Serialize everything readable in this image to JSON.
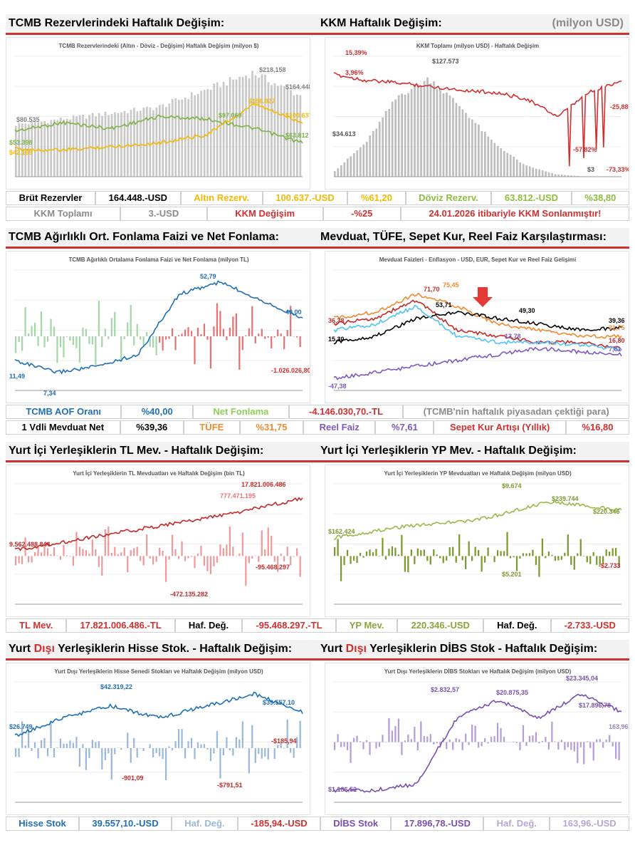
{
  "sections": [
    {
      "panels": [
        {
          "heading": [
            {
              "text": "TCMB Rezervlerindeki Haftalık Değişim:",
              "color": "#000000"
            }
          ],
          "chart_title": "TCMB Rezervlerindeki (Altın - Döviz - Değişim) Haftalık Değişim (milyon $)",
          "labels": [
            {
              "text": "$218,158",
              "color": "#808080"
            },
            {
              "text": "$164.448",
              "color": "#808080"
            },
            {
              "text": "$156.827",
              "color": "#f5b800"
            },
            {
              "text": "$100.637",
              "color": "#f5b800"
            },
            {
              "text": "$97.069",
              "color": "#7cb342"
            },
            {
              "text": "$63.812",
              "color": "#7cb342"
            },
            {
              "text": "$80.535",
              "color": "#808080"
            },
            {
              "text": "$53.398",
              "color": "#7cb342"
            },
            {
              "text": "$42.169",
              "color": "#f5b800"
            }
          ]
        },
        {
          "heading": [
            {
              "text": "KKM Haftalık Değişim:",
              "color": "#000000"
            }
          ],
          "unit": "(milyon USD)",
          "chart_title": "KKM Toplamı (milyon USD) - Haftalık Değişim",
          "labels": [
            {
              "text": "$127.573",
              "color": "#555555"
            },
            {
              "text": "$34.613",
              "color": "#555555"
            },
            {
              "text": "$3",
              "color": "#555555"
            },
            {
              "text": "15,39%",
              "color": "#d32f2f"
            },
            {
              "text": "3,96%",
              "color": "#d32f2f"
            },
            {
              "text": "-57,82%",
              "color": "#d32f2f"
            },
            {
              "text": "-73,33%",
              "color": "#d32f2f"
            },
            {
              "text": "-25,88%",
              "color": "#d32f2f"
            }
          ]
        }
      ],
      "summary": [
        [
          {
            "text": "Brüt Rezervler",
            "color": "#000000"
          },
          {
            "text": "164.448.-USD",
            "color": "#000000"
          },
          {
            "text": "Altın Rezerv.",
            "color": "#f5b800"
          },
          {
            "text": "100.637.-USD",
            "color": "#f5b800"
          },
          {
            "text": "%61,20",
            "color": "#f5b800"
          },
          {
            "text": "Döviz Rezerv.",
            "color": "#8cbf3f"
          },
          {
            "text": "63.812.-USD",
            "color": "#8cbf3f"
          },
          {
            "text": "%38,80",
            "color": "#8cbf3f"
          }
        ],
        [
          {
            "text": "KKM Toplamı",
            "color": "#8a8a8a"
          },
          {
            "text": "3.-USD",
            "color": "#8a8a8a"
          },
          {
            "text": "KKM Değişim",
            "color": "#d32f2f"
          },
          {
            "text": "-%25",
            "color": "#d32f2f"
          },
          {
            "text": "24.01.2026 itibariyle KKM Sonlanmıştır!",
            "color": "#d32f2f"
          }
        ]
      ]
    },
    {
      "panels": [
        {
          "heading": [
            {
              "text": "TCMB Ağırlıklı Ort. Fonlama Faizi ve Net Fonlama:",
              "color": "#000000"
            }
          ],
          "chart_title": "TCMB Ağırlıklı Ortalama Fonlama Faizi ve Net Fonlama (milyon TL)",
          "labels": [
            {
              "text": "52,79",
              "color": "#1f6fb5"
            },
            {
              "text": "40,00",
              "color": "#1f6fb5"
            },
            {
              "text": "11,49",
              "color": "#1f6fb5"
            },
            {
              "text": "7,34",
              "color": "#1f6fb5"
            },
            {
              "text": "-1.026.026,80",
              "color": "#d32f2f"
            }
          ]
        },
        {
          "heading": [
            {
              "text": "Mevduat, TÜFE, Sepet Kur, Reel Faiz Karşılaştırması:",
              "color": "#000000"
            }
          ],
          "chart_title": "Mevduat Faizleri - Enflasyon - USD, EUR, Sepet Kur ve Reel Faiz Gelişimi",
          "labels": [
            {
              "text": "71,70",
              "color": "#c62828"
            },
            {
              "text": "75,45",
              "color": "#ef8a2e"
            },
            {
              "text": "53,71",
              "color": "#000000"
            },
            {
              "text": "49,30",
              "color": "#000000"
            },
            {
              "text": "39,36",
              "color": "#000000"
            },
            {
              "text": "31,75",
              "color": "#ef8a2e"
            },
            {
              "text": "36,38",
              "color": "#c62828"
            },
            {
              "text": "15,30",
              "color": "#000000"
            },
            {
              "text": "13,78",
              "color": "#7e57c2"
            },
            {
              "text": "16,80",
              "color": "#c62828"
            },
            {
              "text": "7,61",
              "color": "#7e57c2"
            },
            {
              "text": "-47,38",
              "color": "#7e57c2"
            }
          ]
        }
      ],
      "summary": [
        [
          {
            "text": "TCMB AOF Oranı",
            "color": "#1f6fb5"
          },
          {
            "text": "%40,00",
            "color": "#1f6fb5"
          },
          {
            "text": "Net Fonlama",
            "color": "#8ccf5a"
          },
          {
            "text": "-4.146.030,70.-TL",
            "color": "#d32f2f"
          },
          {
            "text": "(TCMB'nin haftalık piyasadan çektiği para)",
            "color": "#8a8a8a"
          }
        ],
        [
          {
            "text": "1 Vdli Mevduat Net",
            "color": "#000000"
          },
          {
            "text": "%39,36",
            "color": "#000000"
          },
          {
            "text": "TÜFE",
            "color": "#ef8a2e"
          },
          {
            "text": "%31,75",
            "color": "#ef8a2e"
          },
          {
            "text": "Reel Faiz",
            "color": "#7e57c2"
          },
          {
            "text": "%7,61",
            "color": "#7e57c2"
          },
          {
            "text": "Sepet Kur Artışı (Yıllık)",
            "color": "#d32f2f"
          },
          {
            "text": "%16,80",
            "color": "#d32f2f"
          }
        ]
      ]
    },
    {
      "panels": [
        {
          "heading": [
            {
              "text": "Yurt İçi Yerleşiklerin TL Mev. - Haftalık Değişim:",
              "color": "#000000"
            }
          ],
          "chart_title": "Yurt İçi Yerleşiklerin TL Mevduatları ve Haftalık Değişim (bin TL)",
          "labels": [
            {
              "text": "17.821.006.486",
              "color": "#c62828"
            },
            {
              "text": "777.471.195",
              "color": "#e57373"
            },
            {
              "text": "9.562.488.844",
              "color": "#c62828"
            },
            {
              "text": "-95.468.297",
              "color": "#c62828"
            },
            {
              "text": "-472.135.282",
              "color": "#c62828"
            }
          ]
        },
        {
          "heading": [
            {
              "text": "Yurt İçi Yerleşiklerin YP Mev. - Haftalık Değişim:",
              "color": "#000000"
            }
          ],
          "chart_title": "Yurt İçi Yerleşiklerin YP Mevduatları ve Haftalık Değişim (milyon USD)",
          "labels": [
            {
              "text": "$9.674",
              "color": "#7a9a2e"
            },
            {
              "text": "$239.744",
              "color": "#7a9a2e"
            },
            {
              "text": "$220.346",
              "color": "#7a9a2e"
            },
            {
              "text": "$162.424",
              "color": "#7a9a2e"
            },
            {
              "text": "$5.201",
              "color": "#7a9a2e"
            },
            {
              "text": "-$2.733",
              "color": "#c62828"
            }
          ]
        }
      ],
      "summary": [
        [
          {
            "text": "TL Mev.",
            "color": "#d32f2f"
          },
          {
            "text": "17.821.006.486.-TL",
            "color": "#d32f2f"
          },
          {
            "text": "Haf. Değ.",
            "color": "#000000"
          },
          {
            "text": "-95.468.297.-TL",
            "color": "#d32f2f"
          },
          {
            "text": "YP Mev.",
            "color": "#8aa63a"
          },
          {
            "text": "220.346.-USD",
            "color": "#8aa63a"
          },
          {
            "text": "Haf. Değ.",
            "color": "#000000"
          },
          {
            "text": "-2.733.-USD",
            "color": "#d32f2f"
          }
        ]
      ]
    },
    {
      "panels": [
        {
          "heading": [
            {
              "text": "Yurt ",
              "color": "#000000"
            },
            {
              "text": "Dışı",
              "color": "#d32f2f"
            },
            {
              "text": " Yerleşiklerin Hisse Stok. - Haftalık Değişim:",
              "color": "#000000"
            }
          ],
          "chart_title": "Yurt Dışı Yerleşiklerin Hisse Senedi Stokları ve Haftalık Değişim (milyon USD)",
          "labels": [
            {
              "text": "$42.319,22",
              "color": "#1f6fb5"
            },
            {
              "text": "$39.557,10",
              "color": "#1f6fb5"
            },
            {
              "text": "$26.749",
              "color": "#1f6fb5"
            },
            {
              "text": "-$185,94",
              "color": "#c62828"
            },
            {
              "text": "-901,09",
              "color": "#c62828"
            },
            {
              "text": "-$791,51",
              "color": "#c62828"
            }
          ]
        },
        {
          "heading": [
            {
              "text": "Yurt ",
              "color": "#000000"
            },
            {
              "text": "Dışı",
              "color": "#d32f2f"
            },
            {
              "text": " Yerleşiklerin DİBS Stok - Haftalık Değişim:",
              "color": "#000000"
            }
          ],
          "chart_title": "Yurt Dışı Yerleşiklerin DİBS Stokları ve Haftalık Değişim (milyon USD)",
          "labels": [
            {
              "text": "$23.345,04",
              "color": "#7a4fb0"
            },
            {
              "text": "$2.832,57",
              "color": "#7a4fb0"
            },
            {
              "text": "$20.875,35",
              "color": "#7a4fb0"
            },
            {
              "text": "$17.896,78",
              "color": "#7a4fb0"
            },
            {
              "text": "163,96",
              "color": "#9a86c4"
            },
            {
              "text": "$1.186,52",
              "color": "#7a4fb0"
            }
          ]
        }
      ],
      "summary": [
        [
          {
            "text": "Hisse Stok",
            "color": "#1f6fb5"
          },
          {
            "text": "39.557,10.-USD",
            "color": "#1f6fb5"
          },
          {
            "text": "Haf. Değ.",
            "color": "#9ab8db"
          },
          {
            "text": "-185,94.-USD",
            "color": "#d32f2f"
          },
          {
            "text": "DİBS Stok",
            "color": "#7a4fb0"
          },
          {
            "text": "17.896,78.-USD",
            "color": "#7a4fb0"
          },
          {
            "text": "Haf. Değ.",
            "color": "#b7a5d6"
          },
          {
            "text": "163,96.-USD",
            "color": "#b7a5d6"
          }
        ]
      ]
    }
  ]
}
